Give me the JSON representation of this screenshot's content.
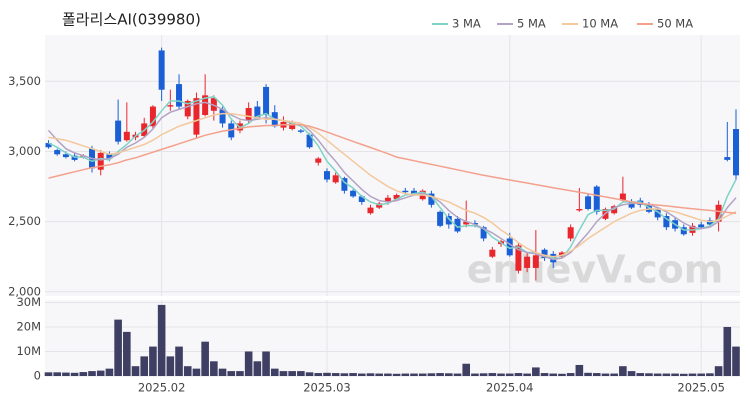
{
  "chart_data": [
    {
      "type": "candlestick",
      "title": "폴라리스AI(039980)",
      "watermark": "enlievV.com",
      "up_color": "#e8262c",
      "down_color": "#1a5fd6",
      "grid": true,
      "legend": "top-right",
      "ylim": [
        1970,
        3830
      ],
      "yticks": [
        {
          "value": 2000,
          "label": "2,000"
        },
        {
          "value": 2500,
          "label": "2,500"
        },
        {
          "value": 3000,
          "label": "3,000"
        },
        {
          "value": 3500,
          "label": "3,500"
        }
      ],
      "xticks": [
        {
          "value": 13,
          "label": "2025.02"
        },
        {
          "value": 32,
          "label": "2025.03"
        },
        {
          "value": 53,
          "label": "2025.04"
        },
        {
          "value": 75,
          "label": "2025.05"
        }
      ],
      "open": [
        3060,
        3010,
        2980,
        2970,
        2960,
        3020,
        2870,
        2980,
        3220,
        3080,
        3100,
        3110,
        3180,
        3720,
        3320,
        3480,
        3250,
        3120,
        3260,
        3290,
        3300,
        3200,
        3150,
        3220,
        3320,
        3460,
        3280,
        3170,
        3160,
        3150,
        3120,
        2920,
        2860,
        2780,
        2810,
        2720,
        2680,
        2560,
        2600,
        2640,
        2660,
        2720,
        2720,
        2660,
        2700,
        2570,
        2540,
        2520,
        2480,
        2490,
        2460,
        2250,
        2340,
        2380,
        2150,
        2170,
        2170,
        2300,
        2270,
        2250,
        2380,
        2580,
        2680,
        2750,
        2520,
        2560,
        2650,
        2640,
        2650,
        2620,
        2590,
        2540,
        2510,
        2460,
        2420,
        2480,
        2510,
        2500,
        2960,
        3160
      ],
      "high": [
        3080,
        3020,
        3000,
        2990,
        2980,
        3040,
        3010,
        3000,
        3370,
        3350,
        3140,
        3240,
        3330,
        3740,
        3440,
        3550,
        3370,
        3420,
        3550,
        3400,
        3320,
        3220,
        3220,
        3350,
        3360,
        3480,
        3330,
        3250,
        3220,
        3160,
        3130,
        2960,
        2880,
        2850,
        2820,
        2730,
        2690,
        2620,
        2640,
        2690,
        2700,
        2740,
        2740,
        2730,
        2720,
        2580,
        2560,
        2540,
        2650,
        2510,
        2470,
        2320,
        2370,
        2420,
        2350,
        2280,
        2440,
        2310,
        2290,
        2290,
        2480,
        2740,
        2700,
        2760,
        2600,
        2620,
        2820,
        2660,
        2670,
        2640,
        2600,
        2560,
        2530,
        2480,
        2490,
        2500,
        2530,
        2650,
        3210,
        3300
      ],
      "low": [
        3020,
        2970,
        2950,
        2930,
        2950,
        2850,
        2830,
        2930,
        3050,
        3070,
        3080,
        3100,
        3160,
        3360,
        3290,
        3300,
        3230,
        3100,
        3250,
        3220,
        3170,
        3080,
        3130,
        3200,
        3230,
        3200,
        3170,
        3150,
        3150,
        3130,
        3020,
        2900,
        2780,
        2770,
        2700,
        2670,
        2620,
        2550,
        2590,
        2620,
        2650,
        2700,
        2690,
        2650,
        2600,
        2460,
        2450,
        2420,
        2460,
        2460,
        2360,
        2240,
        2320,
        2250,
        2130,
        2140,
        2080,
        2220,
        2170,
        2240,
        2360,
        2570,
        2580,
        2550,
        2510,
        2550,
        2640,
        2590,
        2600,
        2560,
        2510,
        2440,
        2430,
        2400,
        2400,
        2450,
        2470,
        2430,
        2930,
        2800
      ],
      "close": [
        3030,
        2980,
        2960,
        2940,
        2970,
        2880,
        2990,
        2950,
        3070,
        3140,
        3120,
        3200,
        3320,
        3440,
        3330,
        3320,
        3360,
        3380,
        3400,
        3380,
        3200,
        3100,
        3200,
        3310,
        3240,
        3260,
        3180,
        3210,
        3200,
        3140,
        3030,
        2950,
        2800,
        2830,
        2720,
        2680,
        2640,
        2600,
        2630,
        2670,
        2690,
        2710,
        2700,
        2720,
        2620,
        2470,
        2480,
        2430,
        2500,
        2480,
        2380,
        2300,
        2360,
        2260,
        2330,
        2250,
        2260,
        2240,
        2210,
        2280,
        2460,
        2590,
        2590,
        2570,
        2590,
        2610,
        2700,
        2600,
        2620,
        2570,
        2530,
        2460,
        2450,
        2410,
        2470,
        2460,
        2480,
        2620,
        2940,
        2830
      ],
      "series": [
        {
          "name": "3 MA",
          "color": "#7ed3c6",
          "values": [
            3060,
            3030,
            2990,
            2960,
            2960,
            2930,
            2950,
            2940,
            3000,
            3050,
            3110,
            3150,
            3210,
            3290,
            3360,
            3360,
            3340,
            3360,
            3380,
            3390,
            3330,
            3230,
            3170,
            3200,
            3250,
            3270,
            3230,
            3220,
            3200,
            3180,
            3120,
            3040,
            2930,
            2860,
            2780,
            2740,
            2680,
            2640,
            2620,
            2630,
            2660,
            2690,
            2700,
            2710,
            2680,
            2600,
            2520,
            2460,
            2470,
            2470,
            2450,
            2390,
            2350,
            2310,
            2320,
            2280,
            2280,
            2250,
            2240,
            2240,
            2320,
            2440,
            2550,
            2580,
            2580,
            2590,
            2640,
            2640,
            2640,
            2600,
            2570,
            2520,
            2480,
            2440,
            2440,
            2450,
            2470,
            2520,
            2680,
            2800
          ]
        },
        {
          "name": "5 MA",
          "color": "#b3a3c4",
          "values": [
            3150,
            3080,
            3020,
            2990,
            2970,
            2950,
            2940,
            2950,
            2980,
            3030,
            3060,
            3100,
            3160,
            3240,
            3280,
            3300,
            3320,
            3340,
            3350,
            3330,
            3300,
            3260,
            3230,
            3220,
            3230,
            3240,
            3230,
            3220,
            3210,
            3200,
            3150,
            3080,
            3000,
            2930,
            2850,
            2790,
            2730,
            2680,
            2650,
            2640,
            2650,
            2670,
            2690,
            2700,
            2680,
            2640,
            2580,
            2530,
            2500,
            2480,
            2450,
            2420,
            2380,
            2340,
            2300,
            2280,
            2270,
            2250,
            2230,
            2240,
            2280,
            2350,
            2420,
            2500,
            2560,
            2600,
            2620,
            2630,
            2630,
            2620,
            2600,
            2570,
            2530,
            2490,
            2460,
            2450,
            2460,
            2500,
            2600,
            2670
          ]
        },
        {
          "name": "10 MA",
          "color": "#f3c89c",
          "values": [
            3100,
            3090,
            3080,
            3060,
            3040,
            3020,
            3000,
            2980,
            2990,
            3010,
            3030,
            3050,
            3080,
            3120,
            3150,
            3180,
            3200,
            3220,
            3240,
            3260,
            3270,
            3270,
            3260,
            3250,
            3240,
            3230,
            3230,
            3220,
            3210,
            3200,
            3170,
            3130,
            3080,
            3030,
            2980,
            2930,
            2880,
            2830,
            2790,
            2750,
            2720,
            2700,
            2690,
            2690,
            2680,
            2660,
            2640,
            2610,
            2580,
            2560,
            2530,
            2490,
            2440,
            2400,
            2350,
            2310,
            2280,
            2260,
            2250,
            2260,
            2290,
            2330,
            2380,
            2420,
            2460,
            2500,
            2530,
            2560,
            2580,
            2590,
            2590,
            2580,
            2570,
            2550,
            2530,
            2510,
            2500,
            2510,
            2540,
            2570
          ]
        },
        {
          "name": "50 MA",
          "color": "#f3a18c",
          "values": [
            2810,
            2825,
            2840,
            2855,
            2870,
            2885,
            2895,
            2905,
            2920,
            2940,
            2955,
            2975,
            2995,
            3015,
            3035,
            3055,
            3075,
            3095,
            3115,
            3130,
            3145,
            3155,
            3165,
            3175,
            3180,
            3185,
            3185,
            3190,
            3190,
            3190,
            3180,
            3160,
            3138,
            3116,
            3094,
            3072,
            3050,
            3028,
            3006,
            2984,
            2960,
            2947,
            2934,
            2921,
            2908,
            2895,
            2882,
            2869,
            2856,
            2843,
            2830,
            2819,
            2808,
            2797,
            2786,
            2775,
            2764,
            2753,
            2742,
            2731,
            2720,
            2709,
            2698,
            2687,
            2676,
            2665,
            2653,
            2641,
            2630,
            2624,
            2618,
            2612,
            2605,
            2598,
            2592,
            2586,
            2580,
            2573,
            2566,
            2560
          ]
        }
      ]
    },
    {
      "type": "bar",
      "color": "#3e3f63",
      "grid": true,
      "ylim": [
        0,
        31000000
      ],
      "yticks": [
        0,
        {
          "value": 10000000,
          "label": "10M"
        },
        {
          "value": 20000000,
          "label": "20M"
        },
        {
          "value": 30000000,
          "label": "30M"
        }
      ],
      "values": [
        1500000,
        1500000,
        1400000,
        1300000,
        1600000,
        2000000,
        2200000,
        3000000,
        23000000,
        18000000,
        4000000,
        8000000,
        12000000,
        29000000,
        8000000,
        12000000,
        4000000,
        3000000,
        14000000,
        6000000,
        3000000,
        2000000,
        2000000,
        10000000,
        6000000,
        10000000,
        3000000,
        2000000,
        2000000,
        2000000,
        1500000,
        1200000,
        1300000,
        1200000,
        1100000,
        1200000,
        1000000,
        1100000,
        1000000,
        1000000,
        900000,
        1000000,
        1000000,
        1000000,
        1100000,
        1200000,
        1100000,
        1000000,
        5000000,
        1000000,
        1100000,
        1200000,
        1000000,
        1000000,
        1200000,
        1000000,
        3500000,
        1200000,
        1000000,
        900000,
        1200000,
        4500000,
        1300000,
        1200000,
        1000000,
        1000000,
        4000000,
        2000000,
        1200000,
        1100000,
        1000000,
        1000000,
        1000000,
        900000,
        1000000,
        1000000,
        1100000,
        4000000,
        20000000,
        12000000
      ]
    }
  ]
}
